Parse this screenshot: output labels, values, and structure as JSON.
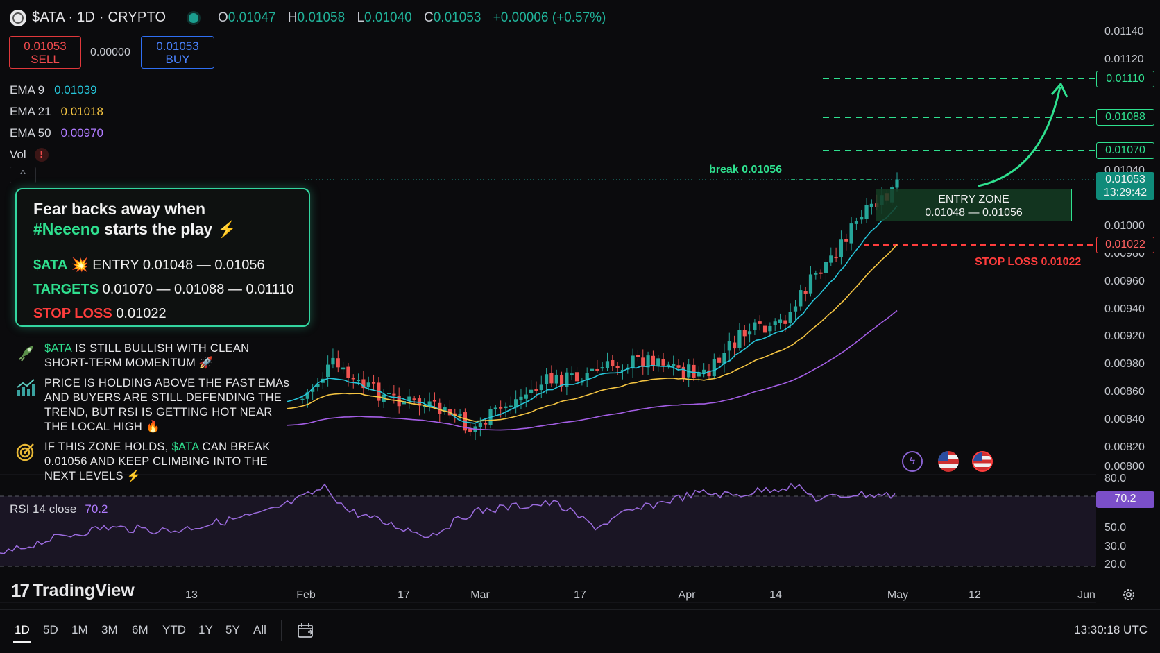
{
  "header": {
    "symbol_title": "$ATA · 1D · CRYPTO",
    "ohlc": {
      "o_label": "O",
      "o": "0.01047",
      "h_label": "H",
      "h": "0.01058",
      "l_label": "L",
      "l": "0.01040",
      "c_label": "C",
      "c": "0.01053",
      "change": "+0.00006 (+0.57%)"
    }
  },
  "trade": {
    "sell_price": "0.01053",
    "sell_label": "SELL",
    "spread": "0.00000",
    "buy_price": "0.01053",
    "buy_label": "BUY"
  },
  "indicators": [
    {
      "name": "EMA 9",
      "value": "0.01039",
      "color": "#26c6da"
    },
    {
      "name": "EMA 21",
      "value": "0.01018",
      "color": "#f5c542"
    },
    {
      "name": "EMA 50",
      "value": "0.00970",
      "color": "#a45ee5"
    },
    {
      "name": "Vol",
      "value": "!"
    }
  ],
  "promo": {
    "title_line1": "Fear backs away when",
    "title_tag": "#Neeeno",
    "title_rest": "starts the play ⚡",
    "entry_symbol": "$ATA",
    "entry_emoji": "💥",
    "entry_text": "ENTRY 0.01048 — 0.01056",
    "targets_label": "TARGETS",
    "targets_text": "0.01070 — 0.01088 — 0.01110",
    "stop_label": "STOP LOSS",
    "stop_text": "0.01022"
  },
  "notes": [
    {
      "icon": "rocket-icon",
      "hl": "$ATA",
      "text": " IS STILL BULLISH WITH CLEAN SHORT-TERM MOMENTUM 🚀"
    },
    {
      "icon": "chart-up-icon",
      "text": "PRICE IS HOLDING ABOVE THE FAST EMAs AND BUYERS ARE STILL DEFENDING THE TREND, BUT RSI IS GETTING HOT NEAR THE LOCAL HIGH 🔥"
    },
    {
      "icon": "target-icon",
      "pre": "IF THIS ZONE HOLDS, ",
      "hl": "$ATA",
      "text": " CAN BREAK 0.01056 AND KEEP CLIMBING INTO THE NEXT LEVELS ⚡"
    }
  ],
  "price_axis": [
    "0.01140",
    "0.01120",
    "0.01040",
    "0.01000",
    "0.00980",
    "0.00960",
    "0.00940",
    "0.00920",
    "0.00980",
    "0.00860",
    "0.00840",
    "0.00820",
    "0.00800"
  ],
  "price_pills": {
    "t3": "0.01110",
    "t2": "0.01088",
    "t1": "0.01070",
    "current": "0.01053",
    "countdown": "13:29:42",
    "stop": "0.01022"
  },
  "annotations": {
    "break_label": "break 0.01056",
    "entry_zone_title": "ENTRY ZONE",
    "entry_zone_range": "0.01048 — 0.01056",
    "stop_loss_label": "STOP LOSS 0.01022"
  },
  "rsi": {
    "label": "RSI 14 close",
    "value": "70.2",
    "axis": [
      "80.0",
      "50.0",
      "30.0",
      "20.0"
    ],
    "pill": "70.2"
  },
  "x_axis": [
    "13",
    "Feb",
    "17",
    "Mar",
    "17",
    "Apr",
    "14",
    "May",
    "12",
    "Jun"
  ],
  "brand": "TradingView",
  "ranges": [
    "1D",
    "5D",
    "1M",
    "3M",
    "6M",
    "YTD",
    "1Y",
    "5Y",
    "All"
  ],
  "active_range": "1D",
  "clock": "13:30:18 UTC",
  "colors": {
    "up": "#26a69a",
    "down": "#ef5350",
    "green_accent": "#2fe08f",
    "red_accent": "#ff3d3d",
    "ema9": "#26c6da",
    "ema21": "#f5c542",
    "ema50": "#a45ee5",
    "rsi": "#9b6bde"
  }
}
